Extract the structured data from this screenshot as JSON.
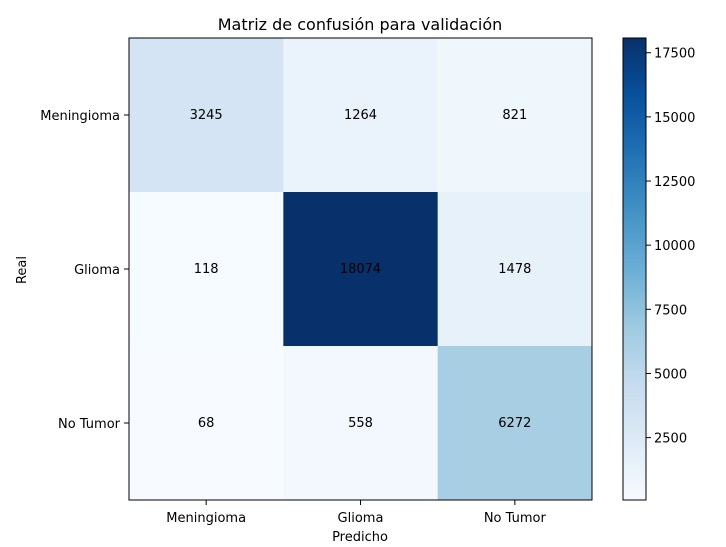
{
  "chart_data": {
    "type": "heatmap",
    "title": "Matriz de confusión para validación",
    "xlabel": "Predicho",
    "ylabel": "Real",
    "x_categories": [
      "Meningioma",
      "Glioma",
      "No Tumor"
    ],
    "y_categories": [
      "Meningioma",
      "Glioma",
      "No Tumor"
    ],
    "values": [
      [
        3245,
        1264,
        821
      ],
      [
        118,
        18074,
        1478
      ],
      [
        68,
        558,
        6272
      ]
    ],
    "colormap": "Blues",
    "vmin": 68,
    "vmax": 18074,
    "colorbar_ticks": [
      "2500",
      "5000",
      "7500",
      "10000",
      "12500",
      "15000",
      "17500"
    ],
    "colorbar_tick_values": [
      2500,
      5000,
      7500,
      10000,
      12500,
      15000,
      17500
    ],
    "grid": false
  }
}
